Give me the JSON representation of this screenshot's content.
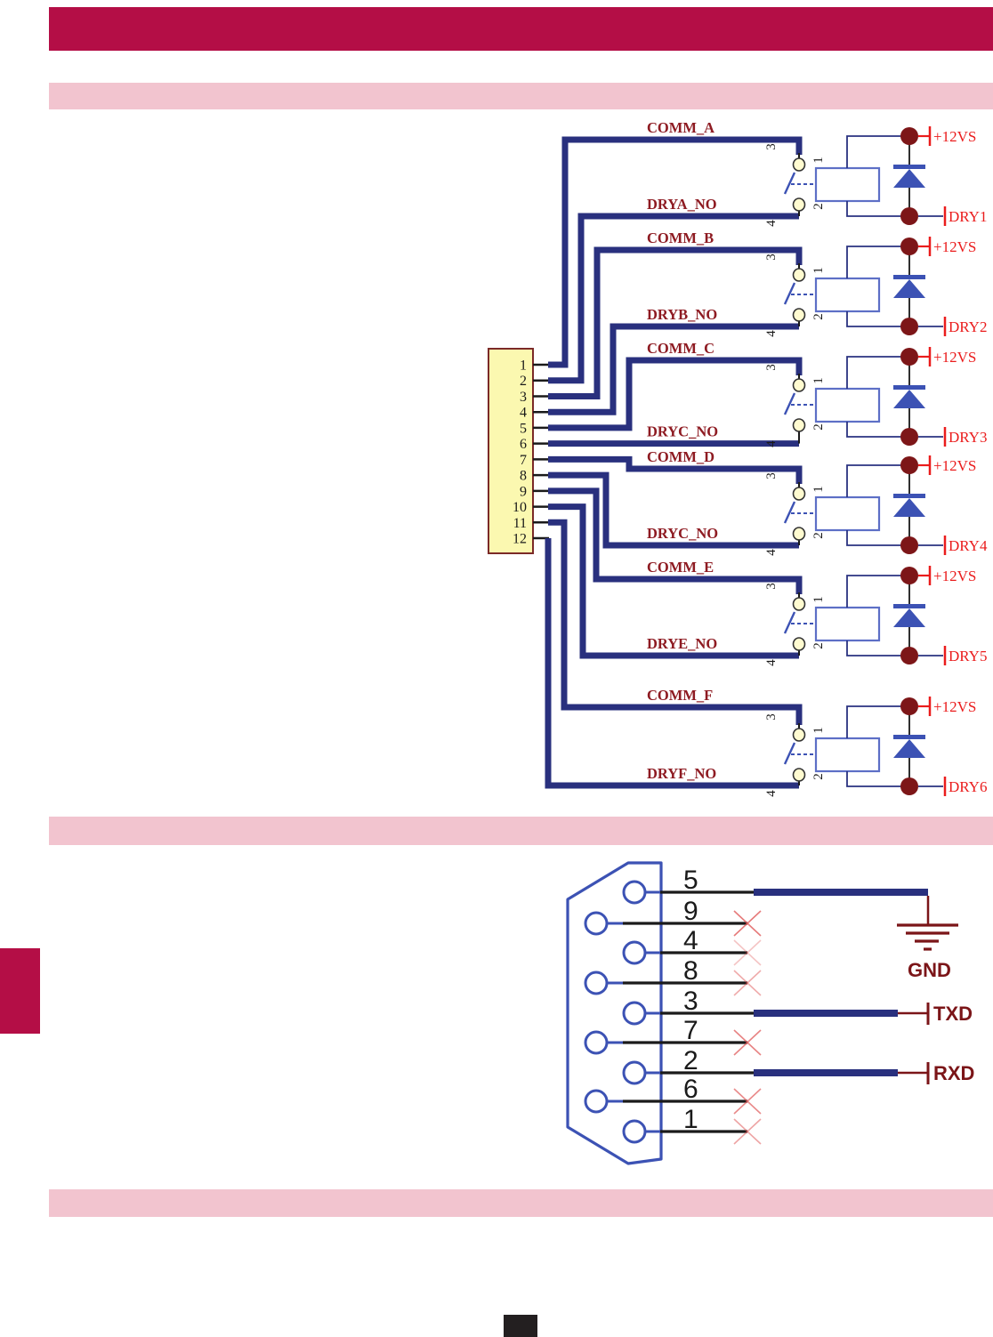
{
  "colors": {
    "header": "#b40e46",
    "section_bar": "#f2c4cf",
    "wire_navy": "#29307e",
    "thin_navy": "#2a3280",
    "coil_box": "#5d6fc6",
    "switch_blue": "#3c52b4",
    "node_maroon": "#7d1618",
    "signal_red": "#ea1c1c",
    "net_label": "#8e1b22",
    "io_label": "#7b1518",
    "line_black": "#1a1a1a",
    "connector_fill": "#fbf8b0",
    "connector_stroke": "#7b2a27",
    "contact_fill": "#fffbd0",
    "nc_x_red": "#e05a5a"
  },
  "relay_diagram": {
    "connector_pins": [
      "1",
      "2",
      "3",
      "4",
      "5",
      "6",
      "7",
      "8",
      "9",
      "10",
      "11",
      "12"
    ],
    "relay_symbol_pins": {
      "switch_top": "3",
      "coil_top": "1",
      "coil_bottom": "2",
      "switch_bottom": "4"
    },
    "supply_label": "+12VS",
    "relays": [
      {
        "comm": "COMM_A",
        "no": "DRYA_NO",
        "output": "DRY1"
      },
      {
        "comm": "COMM_B",
        "no": "DRYB_NO",
        "output": "DRY2"
      },
      {
        "comm": "COMM_C",
        "no": "DRYC_NO",
        "output": "DRY3"
      },
      {
        "comm": "COMM_D",
        "no": "DRYC_NO",
        "output": "DRY4"
      },
      {
        "comm": "COMM_E",
        "no": "DRYE_NO",
        "output": "DRY5"
      },
      {
        "comm": "COMM_F",
        "no": "DRYF_NO",
        "output": "DRY6"
      }
    ]
  },
  "serial_diagram": {
    "pins": [
      {
        "number": "5",
        "connection": "gnd"
      },
      {
        "number": "9",
        "connection": "nc"
      },
      {
        "number": "4",
        "connection": "nc"
      },
      {
        "number": "8",
        "connection": "nc"
      },
      {
        "number": "3",
        "connection": "txd"
      },
      {
        "number": "7",
        "connection": "nc"
      },
      {
        "number": "2",
        "connection": "rxd"
      },
      {
        "number": "6",
        "connection": "nc"
      },
      {
        "number": "1",
        "connection": "nc"
      }
    ],
    "gnd_label": "GND",
    "txd_label": "TXD",
    "rxd_label": "RXD"
  }
}
